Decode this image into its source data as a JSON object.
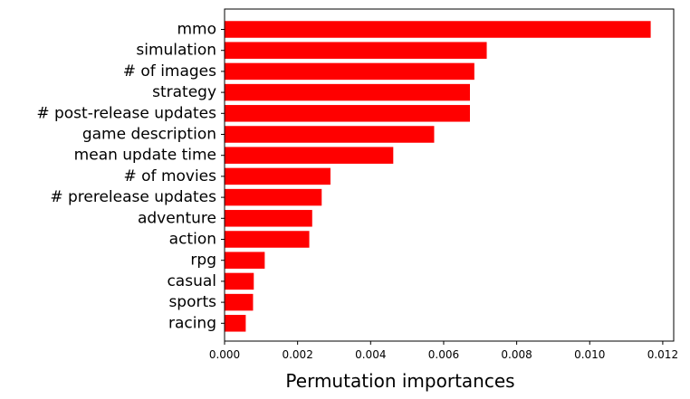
{
  "chart_data": {
    "type": "bar",
    "orientation": "horizontal",
    "title": "",
    "xlabel": "Permutation importances",
    "ylabel": "",
    "categories": [
      "mmo",
      "simulation",
      "# of images",
      "strategy",
      "# post-release updates",
      "game description",
      "mean update time",
      "# of movies",
      "# prerelease updates",
      "adventure",
      "action",
      "rpg",
      "casual",
      "sports",
      "racing"
    ],
    "values": [
      0.01167,
      0.00718,
      0.00684,
      0.00672,
      0.00672,
      0.00574,
      0.00462,
      0.0029,
      0.00266,
      0.0024,
      0.00232,
      0.0011,
      0.0008,
      0.00078,
      0.00058
    ],
    "xlim": [
      0,
      0.0123
    ],
    "xticks": [
      "0.000",
      "0.002",
      "0.004",
      "0.006",
      "0.008",
      "0.010",
      "0.012"
    ],
    "xtick_values": [
      0,
      0.002,
      0.004,
      0.006,
      0.008,
      0.01,
      0.012
    ],
    "grid": false,
    "legend": "none",
    "bar_color": "#ff0000"
  }
}
